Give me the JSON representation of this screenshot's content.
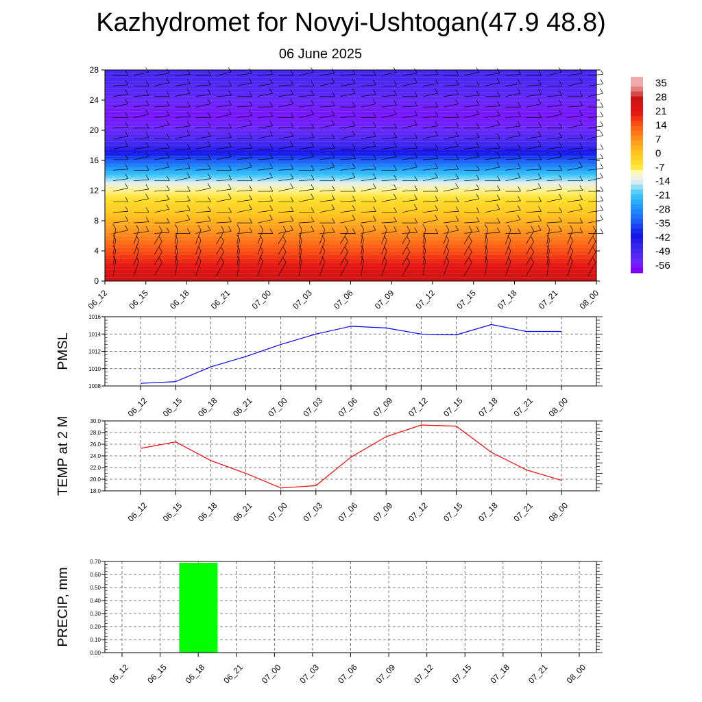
{
  "title": "Kazhydromet for Novyi-Ushtogan(47.9 48.8)",
  "subtitle": "06 June 2025",
  "colors": {
    "pmsl_line": "#0000ff",
    "temp_line": "#ff0000",
    "precip_bar": "#00ff00",
    "grid": "#555555"
  },
  "chart_data": [
    {
      "type": "heatmap",
      "name": "upper-air temperature and wind cross-section",
      "x_ticks": [
        "06_12",
        "06_15",
        "06_18",
        "06_21",
        "07_00",
        "07_03",
        "07_06",
        "07_09",
        "07_12",
        "07_15",
        "07_18",
        "07_21",
        "08_00"
      ],
      "y_ticks": [
        0,
        4,
        8,
        12,
        16,
        20,
        24,
        28
      ],
      "ylim": [
        0,
        28
      ],
      "colorbar_labels": [
        "35",
        "28",
        "21",
        "14",
        "7",
        "0",
        "-7",
        "-14",
        "-21",
        "-28",
        "-35",
        "-42",
        "-49",
        "-56"
      ],
      "levels": [
        0,
        1,
        2,
        3,
        4,
        5,
        6,
        7,
        8,
        9,
        10,
        11,
        12,
        13,
        14,
        15,
        16,
        17,
        18,
        19,
        20,
        21,
        22,
        23,
        24,
        25,
        26,
        27,
        28
      ],
      "temperature_profile": [
        27,
        24,
        21,
        18,
        15,
        12,
        9,
        6,
        3,
        0,
        -3,
        -6,
        -9,
        -14,
        -21,
        -28,
        -35,
        -42,
        -49,
        -52,
        -55,
        -57,
        -58,
        -57,
        -55,
        -53,
        -52,
        -51,
        -50
      ],
      "wind_barbs": "present"
    },
    {
      "type": "line",
      "ylabel": "PMSL",
      "x": [
        "06_12",
        "06_15",
        "06_18",
        "06_21",
        "07_00",
        "07_03",
        "07_06",
        "07_09",
        "07_12",
        "07_15",
        "07_18",
        "07_21",
        "08_00"
      ],
      "values": [
        1008.3,
        1008.5,
        1010.2,
        1011.4,
        1012.8,
        1014.0,
        1014.9,
        1014.7,
        1014.0,
        1013.9,
        1015.1,
        1014.3,
        1014.3
      ],
      "ylim": [
        1008,
        1016
      ],
      "yticks": [
        "1008",
        "1010",
        "1012",
        "1014",
        "1016"
      ],
      "grid": true
    },
    {
      "type": "line",
      "ylabel": "TEMP at 2 M",
      "x": [
        "06_12",
        "06_15",
        "06_18",
        "06_21",
        "07_00",
        "07_03",
        "07_06",
        "07_09",
        "07_12",
        "07_15",
        "07_18",
        "07_21",
        "08_00"
      ],
      "values": [
        25.3,
        26.4,
        23.2,
        21.0,
        18.5,
        18.9,
        23.8,
        27.3,
        29.3,
        29.1,
        24.6,
        21.6,
        19.8
      ],
      "ylim": [
        18,
        30
      ],
      "yticks": [
        "18.0",
        "20.0",
        "22.0",
        "24.0",
        "26.0",
        "28.0",
        "30.0"
      ],
      "grid": true
    },
    {
      "type": "bar",
      "ylabel": "PRECIP, mm",
      "x": [
        "06_12",
        "06_15",
        "06_18",
        "06_21",
        "07_00",
        "07_03",
        "07_06",
        "07_09",
        "07_12",
        "07_15",
        "07_18",
        "07_21",
        "08_00"
      ],
      "values": [
        0,
        0,
        0.69,
        0,
        0,
        0,
        0,
        0,
        0,
        0,
        0,
        0,
        0
      ],
      "ylim": [
        0,
        0.7
      ],
      "yticks": [
        "0.00",
        "0.10",
        "0.20",
        "0.30",
        "0.40",
        "0.50",
        "0.60",
        "0.70"
      ],
      "grid": true
    }
  ]
}
